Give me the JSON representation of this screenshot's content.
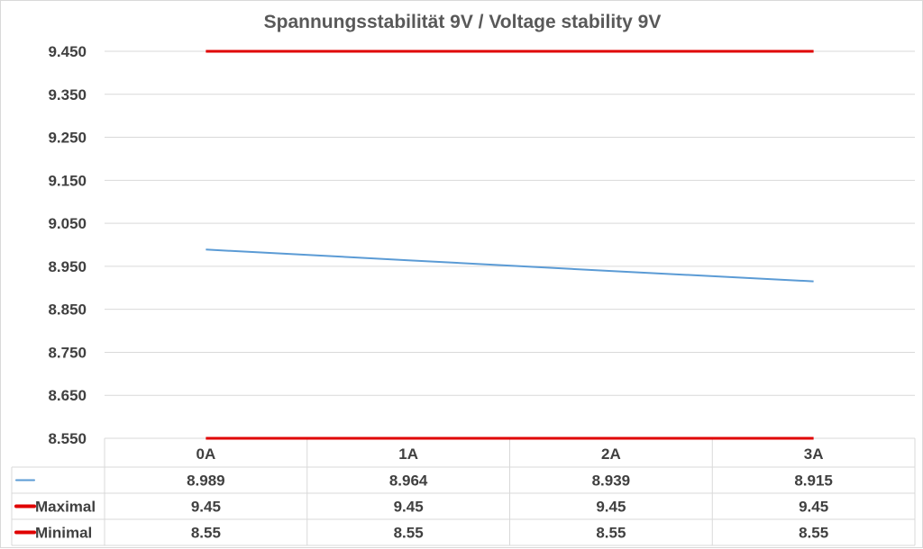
{
  "chart_data": {
    "type": "line",
    "title": "Spannungsstabilität 9V / Voltage stability 9V",
    "categories": [
      "0A",
      "1A",
      "2A",
      "3A"
    ],
    "ylim": [
      8.55,
      9.45
    ],
    "yticks": [
      "9.450",
      "9.350",
      "9.250",
      "9.150",
      "9.050",
      "8.950",
      "8.850",
      "8.750",
      "8.650",
      "8.550"
    ],
    "ytick_values": [
      9.45,
      9.35,
      9.25,
      9.15,
      9.05,
      8.95,
      8.85,
      8.75,
      8.65,
      8.55
    ],
    "grid": true,
    "legend": "data-table",
    "series": [
      {
        "name": "",
        "values": [
          8.989,
          8.964,
          8.939,
          8.915
        ],
        "display": [
          "8.989",
          "8.964",
          "8.939",
          "8.915"
        ],
        "color": "#5b9bd5"
      },
      {
        "name": "Maximal",
        "values": [
          9.45,
          9.45,
          9.45,
          9.45
        ],
        "display": [
          "9.45",
          "9.45",
          "9.45",
          "9.45"
        ],
        "color": "#e00000"
      },
      {
        "name": "Minimal",
        "values": [
          8.55,
          8.55,
          8.55,
          8.55
        ],
        "display": [
          "8.55",
          "8.55",
          "8.55",
          "8.55"
        ],
        "color": "#e00000"
      }
    ]
  },
  "colors": {
    "grid": "#d9d9d9",
    "text": "#404040",
    "title": "#595959"
  }
}
